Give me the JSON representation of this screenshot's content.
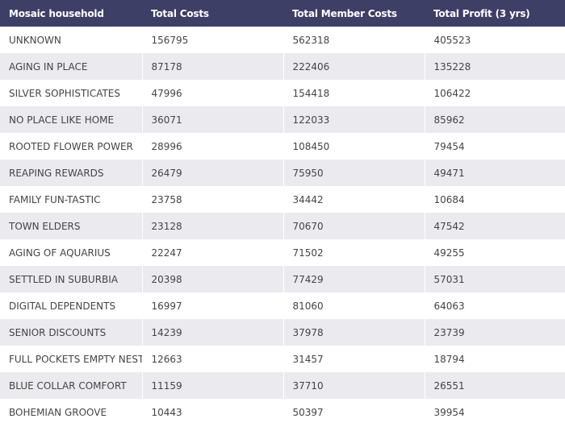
{
  "table": {
    "headers": [
      "Mosaic household",
      "Total Costs",
      "Total Member Costs",
      "Total Profit (3 yrs)"
    ],
    "rows": [
      [
        "UNKNOWN",
        "156795",
        "562318",
        "405523"
      ],
      [
        "AGING IN PLACE",
        "87178",
        "222406",
        "135228"
      ],
      [
        "SILVER SOPHISTICATES",
        "47996",
        "154418",
        "106422"
      ],
      [
        "NO PLACE LIKE HOME",
        "36071",
        "122033",
        "85962"
      ],
      [
        "ROOTED FLOWER POWER",
        "28996",
        "108450",
        "79454"
      ],
      [
        "REAPING REWARDS",
        "26479",
        "75950",
        "49471"
      ],
      [
        "FAMILY FUN-TASTIC",
        "23758",
        "34442",
        "10684"
      ],
      [
        "TOWN ELDERS",
        "23128",
        "70670",
        "47542"
      ],
      [
        "AGING OF AQUARIUS",
        "22247",
        "71502",
        "49255"
      ],
      [
        "SETTLED IN SUBURBIA",
        "20398",
        "77429",
        "57031"
      ],
      [
        "DIGITAL DEPENDENTS",
        "16997",
        "81060",
        "64063"
      ],
      [
        "SENIOR DISCOUNTS",
        "14239",
        "37978",
        "23739"
      ],
      [
        "FULL POCKETS  EMPTY NESTS",
        "12663",
        "31457",
        "18794"
      ],
      [
        "BLUE COLLAR COMFORT",
        "11159",
        "37710",
        "26551"
      ],
      [
        "BOHEMIAN GROOVE",
        "10443",
        "50397",
        "39954"
      ]
    ]
  },
  "colors": {
    "header_bg": "#3d3f66",
    "header_text": "#ffffff",
    "row_alt_bg": "#ebebef",
    "row_bg": "#ffffff",
    "cell_text": "#444444"
  }
}
